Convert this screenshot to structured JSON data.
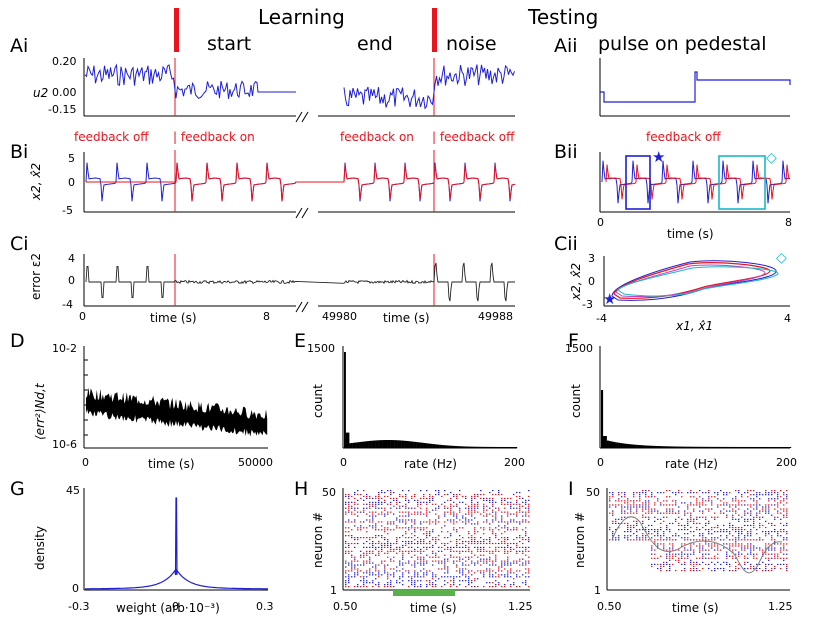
{
  "headers": {
    "learning": "Learning",
    "testing": "Testing",
    "start": "start",
    "end": "end",
    "noise": "noise",
    "pulse": "pulse on pedestal"
  },
  "panel_labels": {
    "Ai": "Ai",
    "Aii": "Aii",
    "Bi": "Bi",
    "Bii": "Bii",
    "Ci": "Ci",
    "Cii": "Cii",
    "D": "D",
    "E": "E",
    "F": "F",
    "G": "G",
    "H": "H",
    "I": "I"
  },
  "annotations": {
    "feedback_off_1": "feedback off",
    "feedback_on_1": "| feedback on",
    "feedback_on_2": "feedback on",
    "feedback_off_2": "| feedback off",
    "feedback_off_3": "feedback off",
    "star": "★",
    "diamond": "◇"
  },
  "colors": {
    "blue": "#1f1fd6",
    "red": "#e8141e",
    "magenta": "#c040c0",
    "cyan": "#1ab8c8",
    "green": "#5ab04a",
    "gray": "#808080"
  },
  "chart_data": [
    {
      "id": "Ai",
      "type": "line",
      "ylabel": "u2",
      "yticks": [
        "0.20",
        "0.00",
        "-0.15"
      ],
      "ylim": [
        -0.15,
        0.2
      ]
    },
    {
      "id": "Aii",
      "type": "line",
      "description_values": []
    },
    {
      "id": "Bi",
      "type": "line",
      "ylabel": "x2, x̂2",
      "yticks": [
        "5",
        "0",
        "-5"
      ],
      "ylim": [
        -5,
        5
      ]
    },
    {
      "id": "Bii",
      "type": "line",
      "xlabel": "time (s)",
      "xticks": [
        "0",
        "8"
      ],
      "xlim": [
        0,
        8
      ]
    },
    {
      "id": "Ci",
      "type": "line",
      "ylabel": "error ε2",
      "yticks": [
        "4",
        "0",
        "-4"
      ],
      "xlabel": "time (s)",
      "xticks": [
        "0",
        "8",
        "49980",
        "49988"
      ]
    },
    {
      "id": "Cii",
      "type": "line",
      "ylabel": "x2, x̂2",
      "xlabel": "x1, x̂1",
      "xticks": [
        "-4",
        "4"
      ],
      "yticks": [
        "3",
        "0",
        "-3"
      ],
      "xlim": [
        -4,
        4
      ],
      "ylim": [
        -3,
        3
      ]
    },
    {
      "id": "D",
      "type": "line",
      "ylabel": "⟨err²⟩Nd,t",
      "yticks": [
        "10-2",
        "10-6"
      ],
      "xlabel": "time (s)",
      "xticks": [
        "0",
        "50000"
      ],
      "xlim": [
        0,
        50000
      ]
    },
    {
      "id": "E",
      "type": "bar",
      "ylabel": "count",
      "yticks": [
        "1500"
      ],
      "xlabel": "rate (Hz)",
      "xticks": [
        "0",
        "200"
      ],
      "xlim": [
        0,
        200
      ],
      "ylim": [
        0,
        1500
      ],
      "values_peak": 1400
    },
    {
      "id": "F",
      "type": "bar",
      "ylabel": "count",
      "yticks": [
        "1500"
      ],
      "xlabel": "rate (Hz)",
      "xticks": [
        "0",
        "200"
      ],
      "xlim": [
        0,
        200
      ],
      "ylim": [
        0,
        1500
      ],
      "values_peak": 850
    },
    {
      "id": "G",
      "type": "line",
      "ylabel": "density",
      "yticks": [
        "45",
        "0"
      ],
      "xlabel": "weight (arb·10⁻³)",
      "xticks": [
        "-0.3",
        "0",
        "0.3"
      ],
      "xlim": [
        -0.3,
        0.3
      ],
      "ylim": [
        0,
        45
      ]
    },
    {
      "id": "H",
      "type": "scatter",
      "ylabel": "neuron #",
      "yticks": [
        "50",
        "1"
      ],
      "xlabel": "time (s)",
      "xticks": [
        "0.50",
        "1.25"
      ],
      "xlim": [
        0.5,
        1.25
      ],
      "ylim": [
        1,
        50
      ]
    },
    {
      "id": "I",
      "type": "scatter",
      "ylabel": "neuron #",
      "yticks": [
        "50",
        "1"
      ],
      "xlabel": "time (s)",
      "xticks": [
        "0.50",
        "1.25"
      ],
      "xlim": [
        0.5,
        1.25
      ],
      "ylim": [
        1,
        50
      ]
    }
  ]
}
